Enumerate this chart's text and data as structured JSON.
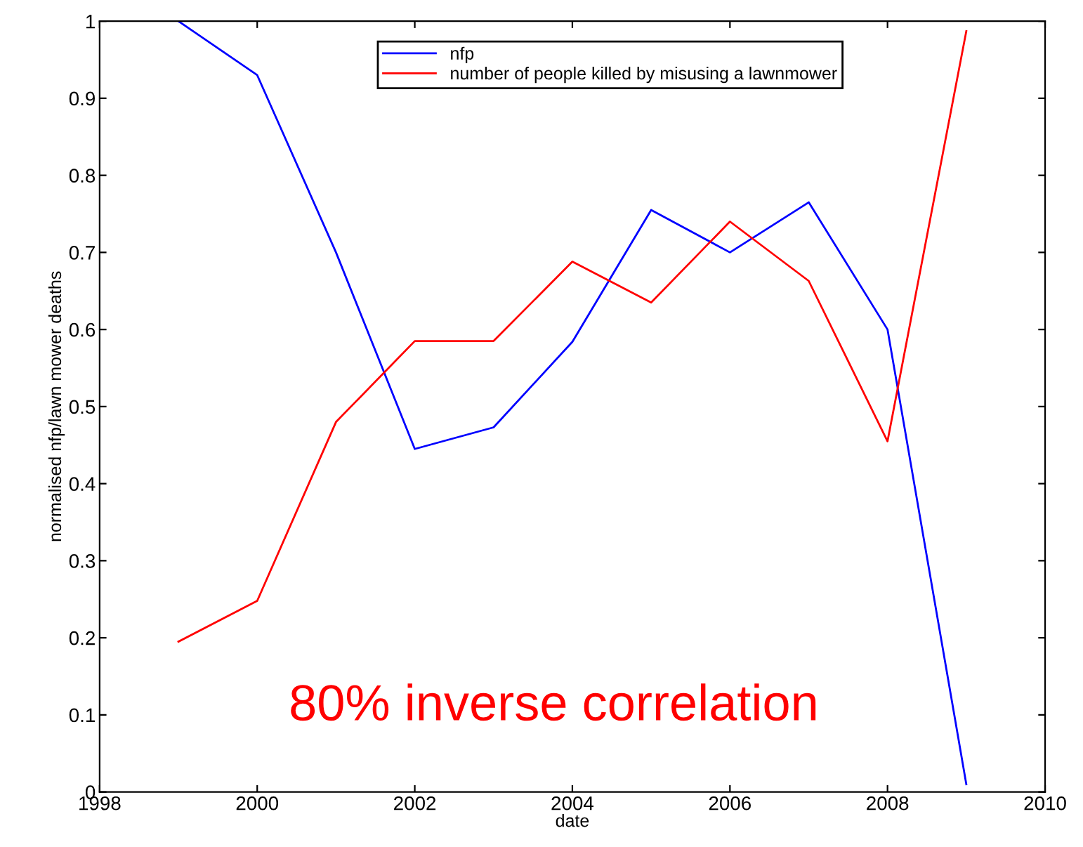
{
  "chart_data": {
    "type": "line",
    "xlabel": "date",
    "ylabel": "normalised nfp/lawn mower deaths",
    "x": [
      1999,
      2000,
      2001,
      2002,
      2003,
      2004,
      2005,
      2006,
      2007,
      2008,
      2009
    ],
    "series": [
      {
        "name": "nfp",
        "color": "#0000ff",
        "values": [
          1.0,
          0.93,
          0.7,
          0.445,
          0.473,
          0.584,
          0.755,
          0.7,
          0.765,
          0.6,
          0.01
        ]
      },
      {
        "name": "number of people killed by misusing a lawnmower",
        "color": "#ff0000",
        "values": [
          0.195,
          0.248,
          0.48,
          0.585,
          0.585,
          0.688,
          0.635,
          0.74,
          0.663,
          0.455,
          0.987
        ]
      }
    ],
    "xlim": [
      1998,
      2010
    ],
    "xticks": [
      1998,
      2000,
      2002,
      2004,
      2006,
      2008,
      2010
    ],
    "ylim": [
      0,
      1
    ],
    "yticks": [
      0,
      0.1,
      0.2,
      0.3,
      0.4,
      0.5,
      0.6,
      0.7,
      0.8,
      0.9,
      1
    ],
    "legend": "top",
    "grid": false,
    "annotations": [
      "80% inverse correlation"
    ]
  }
}
